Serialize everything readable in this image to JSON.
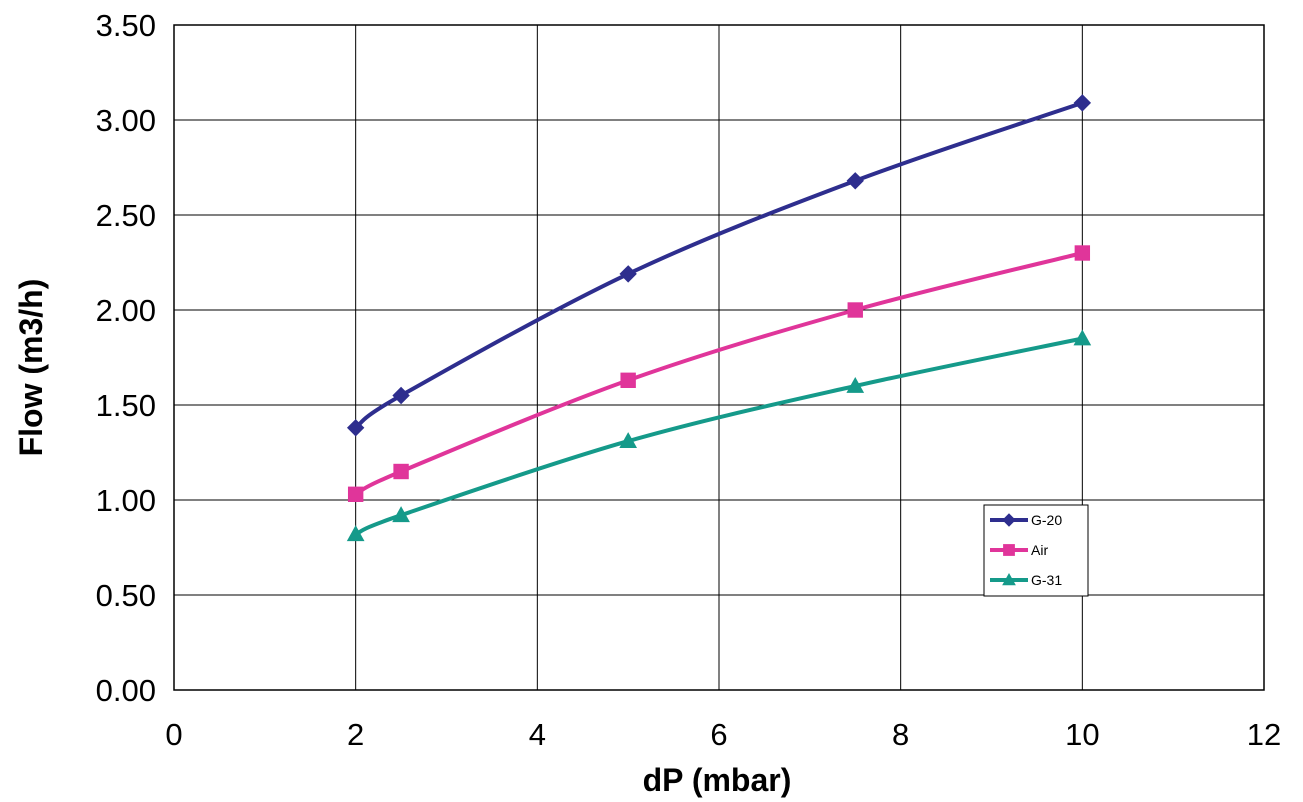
{
  "chart_data": {
    "type": "line",
    "title": "",
    "xlabel": "dP (mbar)",
    "ylabel": "Flow (m3/h)",
    "xlim": [
      0,
      12
    ],
    "ylim": [
      0,
      3.5
    ],
    "x_ticks": [
      "0",
      "2",
      "4",
      "6",
      "8",
      "10",
      "12"
    ],
    "y_ticks": [
      "0.00",
      "0.50",
      "1.00",
      "1.50",
      "2.00",
      "2.50",
      "3.00",
      "3.50"
    ],
    "grid": true,
    "legend_position": "right",
    "x": [
      2,
      2.5,
      5,
      7.5,
      10
    ],
    "series": [
      {
        "name": "G-20",
        "values": [
          1.38,
          1.55,
          2.19,
          2.68,
          3.09
        ],
        "color": "#2e2e8e",
        "marker": "diamond"
      },
      {
        "name": "Air",
        "values": [
          1.03,
          1.15,
          1.63,
          2.0,
          2.3
        ],
        "color": "#e0359a",
        "marker": "square"
      },
      {
        "name": "G-31",
        "values": [
          0.82,
          0.92,
          1.31,
          1.6,
          1.85
        ],
        "color": "#159a8a",
        "marker": "triangle"
      }
    ]
  }
}
